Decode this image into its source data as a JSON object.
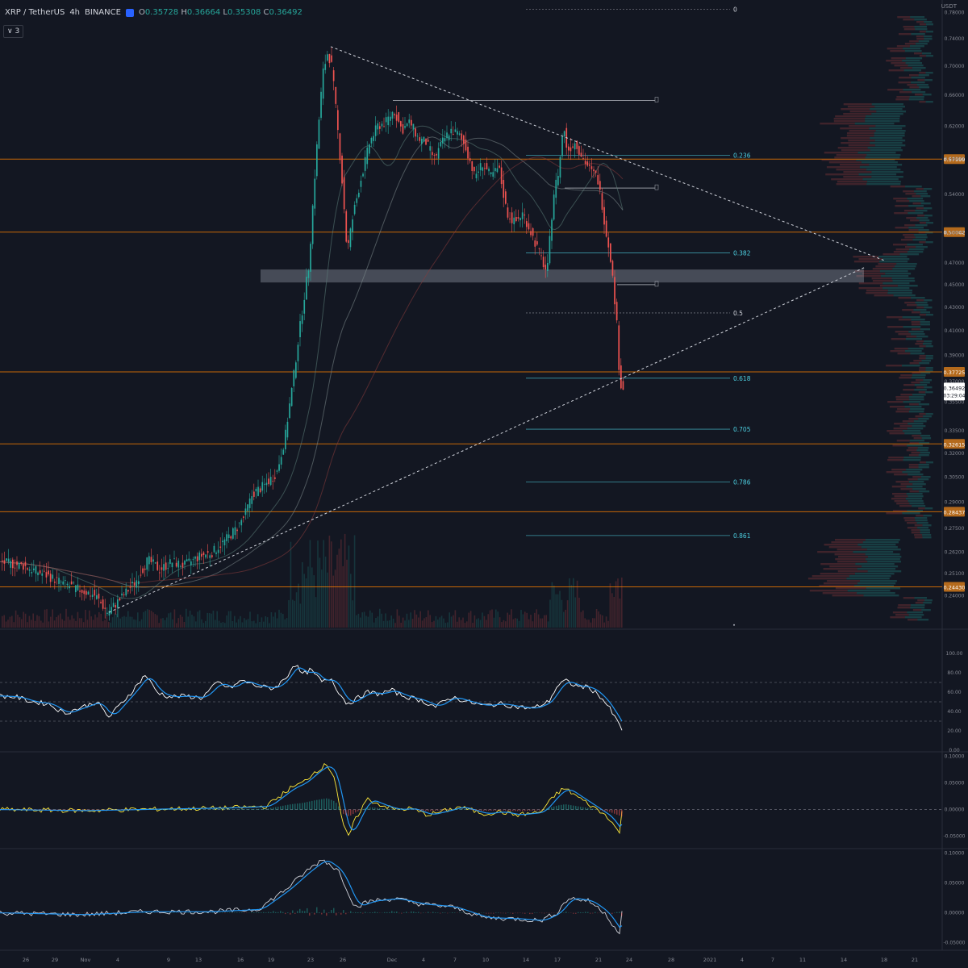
{
  "symbol": {
    "pair": "XRP / TetherUS",
    "interval": "4h",
    "exchange": "BINANCE",
    "ohlc": {
      "o": "0.35728",
      "h": "0.36664",
      "l": "0.35308",
      "c": "0.36492"
    }
  },
  "indicator_count": "3",
  "unit": "USDT",
  "colors": {
    "background": "#131722",
    "up": "#26a69a",
    "down": "#ef5350",
    "level": "#f57c00",
    "fib": "#4dd0e1",
    "rsi": "#ffffff",
    "signal": "#2196f3",
    "macd": "#ffeb3b"
  },
  "price_axis": {
    "ticks": [
      "0.78000",
      "0.74000",
      "0.70000",
      "0.66000",
      "0.62000",
      "0.58000",
      "0.54000",
      "0.50000",
      "0.47000",
      "0.45000",
      "0.43000",
      "0.41000",
      "0.39000",
      "0.37000",
      "0.35500",
      "0.33500",
      "0.32000",
      "0.30500",
      "0.29000",
      "0.27500",
      "0.26200",
      "0.25100",
      "0.24000"
    ]
  },
  "level_tags": [
    {
      "label": "0.57999"
    },
    {
      "label": "0.50042"
    },
    {
      "label": "0.37725"
    },
    {
      "label": "0.32615"
    },
    {
      "label": "0.28437"
    },
    {
      "label": "0.24430"
    }
  ],
  "current_price_tag": {
    "price": "0.36492",
    "countdown": "03:29:04"
  },
  "fib_levels": [
    "0",
    "0.236",
    "0.382",
    "0.5",
    "0.618",
    "0.705",
    "0.786",
    "0.861"
  ],
  "rsi_axis": {
    "ticks": [
      "100.00",
      "80.00",
      "60.00",
      "40.00",
      "20.00",
      "0.00"
    ]
  },
  "macd_axis": {
    "ticks": [
      "0.10000",
      "0.05000",
      "0.00000",
      "-0.05000"
    ]
  },
  "macd2_axis": {
    "ticks": [
      "0.10000",
      "0.05000",
      "0.00000",
      "-0.05000"
    ]
  },
  "time_axis": {
    "ticks": [
      "26",
      "29",
      "Nov",
      "4",
      "9",
      "13",
      "16",
      "19",
      "23",
      "26",
      "Dec",
      "4",
      "7",
      "10",
      "14",
      "17",
      "21",
      "24",
      "28",
      "2021",
      "4",
      "7",
      "11",
      "14",
      "18",
      "21"
    ]
  },
  "chart_data": {
    "type": "candlestick",
    "title": "XRP / TetherUS 4h BINANCE",
    "ylabel": "USDT",
    "price_range": [
      0.225,
      0.8
    ],
    "price_path": [
      [
        0,
        0.257
      ],
      [
        30,
        0.255
      ],
      [
        60,
        0.25
      ],
      [
        80,
        0.246
      ],
      [
        100,
        0.243
      ],
      [
        120,
        0.24
      ],
      [
        135,
        0.232
      ],
      [
        150,
        0.238
      ],
      [
        170,
        0.247
      ],
      [
        185,
        0.258
      ],
      [
        200,
        0.253
      ],
      [
        215,
        0.257
      ],
      [
        230,
        0.255
      ],
      [
        250,
        0.26
      ],
      [
        265,
        0.262
      ],
      [
        280,
        0.268
      ],
      [
        295,
        0.275
      ],
      [
        305,
        0.282
      ],
      [
        315,
        0.295
      ],
      [
        330,
        0.3
      ],
      [
        345,
        0.308
      ],
      [
        355,
        0.33
      ],
      [
        365,
        0.37
      ],
      [
        375,
        0.42
      ],
      [
        385,
        0.47
      ],
      [
        395,
        0.6
      ],
      [
        402,
        0.69
      ],
      [
        408,
        0.72
      ],
      [
        413,
        0.7
      ],
      [
        420,
        0.62
      ],
      [
        428,
        0.53
      ],
      [
        432,
        0.48
      ],
      [
        440,
        0.52
      ],
      [
        450,
        0.56
      ],
      [
        460,
        0.6
      ],
      [
        470,
        0.62
      ],
      [
        480,
        0.625
      ],
      [
        490,
        0.64
      ],
      [
        500,
        0.615
      ],
      [
        510,
        0.625
      ],
      [
        520,
        0.605
      ],
      [
        530,
        0.6
      ],
      [
        540,
        0.58
      ],
      [
        550,
        0.6
      ],
      [
        560,
        0.615
      ],
      [
        570,
        0.61
      ],
      [
        580,
        0.592
      ],
      [
        590,
        0.56
      ],
      [
        600,
        0.575
      ],
      [
        610,
        0.56
      ],
      [
        620,
        0.57
      ],
      [
        630,
        0.52
      ],
      [
        640,
        0.51
      ],
      [
        650,
        0.52
      ],
      [
        660,
        0.5
      ],
      [
        670,
        0.48
      ],
      [
        680,
        0.46
      ],
      [
        688,
        0.54
      ],
      [
        695,
        0.57
      ],
      [
        700,
        0.62
      ],
      [
        705,
        0.59
      ],
      [
        715,
        0.6
      ],
      [
        725,
        0.58
      ],
      [
        735,
        0.565
      ],
      [
        742,
        0.56
      ],
      [
        748,
        0.53
      ],
      [
        753,
        0.5
      ],
      [
        758,
        0.48
      ],
      [
        762,
        0.45
      ],
      [
        766,
        0.42
      ],
      [
        770,
        0.37
      ],
      [
        773,
        0.365
      ]
    ],
    "horizontal_levels": [
      0.57999,
      0.50042,
      0.37725,
      0.32615,
      0.28437,
      0.2443
    ],
    "fib_retracement": [
      {
        "ratio": "0",
        "price": 0.785
      },
      {
        "ratio": "0.236",
        "price": 0.5845
      },
      {
        "ratio": "0.382",
        "price": 0.4798
      },
      {
        "ratio": "0.5",
        "price": 0.425
      },
      {
        "ratio": "0.618",
        "price": 0.3725
      },
      {
        "ratio": "0.705",
        "price": 0.336
      },
      {
        "ratio": "0.786",
        "price": 0.302
      },
      {
        "ratio": "0.861",
        "price": 0.271
      }
    ],
    "demand_zone": [
      0.452,
      0.464
    ],
    "rsi": [
      [
        0,
        56
      ],
      [
        20,
        55
      ],
      [
        40,
        50
      ],
      [
        60,
        48
      ],
      [
        80,
        38
      ],
      [
        100,
        44
      ],
      [
        120,
        50
      ],
      [
        135,
        34
      ],
      [
        150,
        48
      ],
      [
        165,
        62
      ],
      [
        180,
        78
      ],
      [
        195,
        60
      ],
      [
        210,
        55
      ],
      [
        230,
        56
      ],
      [
        250,
        54
      ],
      [
        270,
        70
      ],
      [
        285,
        64
      ],
      [
        300,
        72
      ],
      [
        320,
        66
      ],
      [
        340,
        64
      ],
      [
        355,
        75
      ],
      [
        365,
        90
      ],
      [
        375,
        78
      ],
      [
        385,
        83
      ],
      [
        400,
        70
      ],
      [
        410,
        75
      ],
      [
        420,
        60
      ],
      [
        430,
        48
      ],
      [
        440,
        52
      ],
      [
        455,
        60
      ],
      [
        470,
        58
      ],
      [
        485,
        62
      ],
      [
        500,
        56
      ],
      [
        520,
        52
      ],
      [
        540,
        45
      ],
      [
        560,
        55
      ],
      [
        580,
        50
      ],
      [
        600,
        46
      ],
      [
        620,
        48
      ],
      [
        640,
        45
      ],
      [
        660,
        43
      ],
      [
        680,
        50
      ],
      [
        690,
        65
      ],
      [
        700,
        72
      ],
      [
        715,
        66
      ],
      [
        730,
        65
      ],
      [
        745,
        55
      ],
      [
        755,
        44
      ],
      [
        765,
        30
      ],
      [
        772,
        20
      ]
    ],
    "rsi_levels": [
      70,
      50,
      30
    ],
    "macd": [
      [
        0,
        0.0
      ],
      [
        100,
        -0.002
      ],
      [
        200,
        0.001
      ],
      [
        280,
        0.003
      ],
      [
        330,
        0.006
      ],
      [
        360,
        0.04
      ],
      [
        375,
        0.05
      ],
      [
        390,
        0.07
      ],
      [
        405,
        0.085
      ],
      [
        415,
        0.06
      ],
      [
        425,
        -0.03
      ],
      [
        432,
        -0.05
      ],
      [
        440,
        -0.02
      ],
      [
        455,
        0.02
      ],
      [
        470,
        0.01
      ],
      [
        490,
        0.0
      ],
      [
        510,
        0.002
      ],
      [
        530,
        -0.01
      ],
      [
        550,
        -0.003
      ],
      [
        570,
        0.005
      ],
      [
        600,
        -0.008
      ],
      [
        620,
        -0.004
      ],
      [
        640,
        -0.01
      ],
      [
        670,
        -0.005
      ],
      [
        690,
        0.03
      ],
      [
        700,
        0.04
      ],
      [
        720,
        0.02
      ],
      [
        740,
        0.0
      ],
      [
        755,
        -0.015
      ],
      [
        770,
        -0.05
      ]
    ],
    "macd2": [
      [
        0,
        0.0
      ],
      [
        100,
        -0.003
      ],
      [
        180,
        0.002
      ],
      [
        260,
        0.002
      ],
      [
        320,
        0.006
      ],
      [
        355,
        0.04
      ],
      [
        380,
        0.07
      ],
      [
        400,
        0.09
      ],
      [
        420,
        0.07
      ],
      [
        440,
        0.01
      ],
      [
        460,
        0.02
      ],
      [
        490,
        0.024
      ],
      [
        520,
        0.015
      ],
      [
        560,
        0.01
      ],
      [
        600,
        -0.008
      ],
      [
        640,
        -0.01
      ],
      [
        670,
        -0.013
      ],
      [
        690,
        0.0
      ],
      [
        705,
        0.025
      ],
      [
        730,
        0.02
      ],
      [
        750,
        0.0
      ],
      [
        770,
        -0.04
      ]
    ]
  }
}
